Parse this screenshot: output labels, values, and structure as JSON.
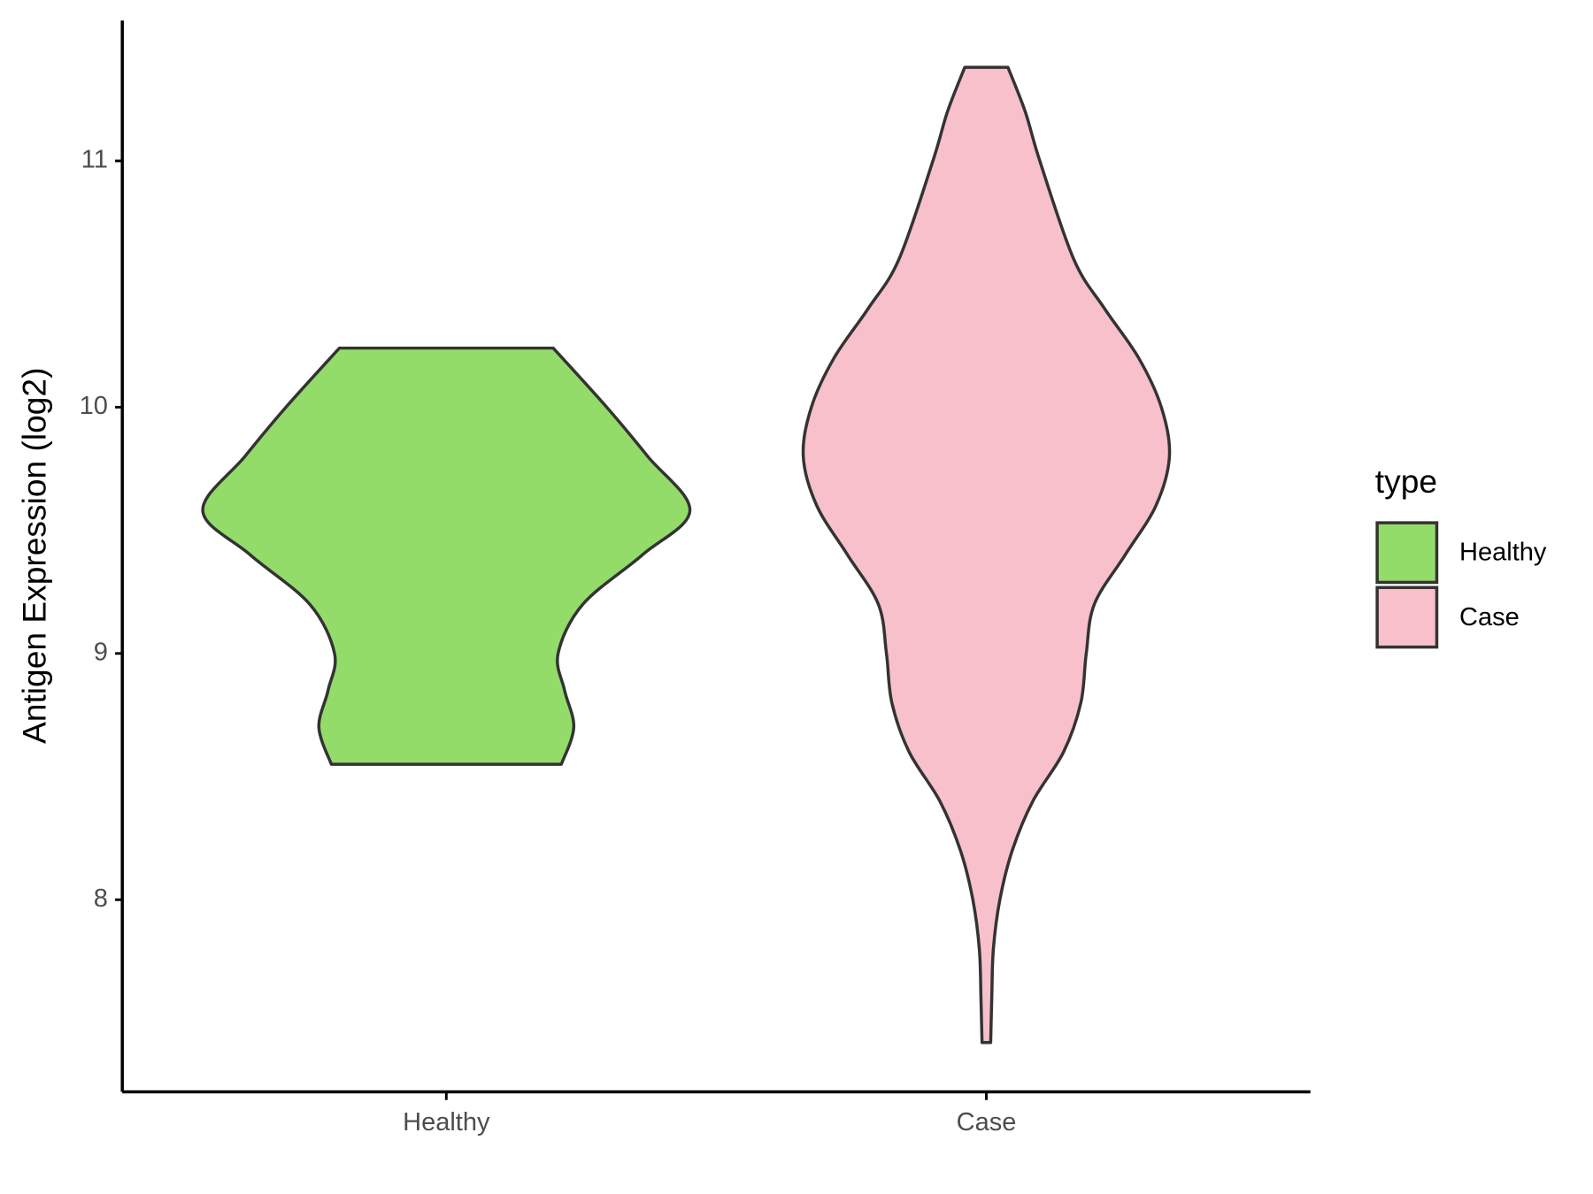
{
  "chart_data": {
    "type": "violin",
    "y_label": "Antigen Expression (log2)",
    "categories": [
      "Healthy",
      "Case"
    ],
    "xlim": [
      0.4,
      2.6
    ],
    "ylim": [
      7.22,
      11.57
    ],
    "yticks": [
      8,
      9,
      10,
      11
    ],
    "legend_title": "type",
    "legend_position": "right",
    "series": [
      {
        "name": "Healthy",
        "color": "#93dc6a",
        "y": [
          10.24,
          10.0,
          9.8,
          9.58,
          9.4,
          9.2,
          9.0,
          8.85,
          8.7,
          8.55
        ],
        "half_width": [
          0.198,
          0.297,
          0.373,
          0.451,
          0.363,
          0.253,
          0.207,
          0.219,
          0.236,
          0.213
        ]
      },
      {
        "name": "Case",
        "color": "#f7c0cb",
        "y": [
          11.38,
          11.2,
          11.0,
          10.6,
          10.4,
          10.2,
          10.0,
          9.8,
          9.6,
          9.4,
          9.2,
          9.0,
          8.8,
          8.6,
          8.4,
          8.2,
          8.0,
          7.8,
          7.6,
          7.42
        ],
        "half_width": [
          0.04,
          0.072,
          0.099,
          0.162,
          0.219,
          0.282,
          0.324,
          0.339,
          0.314,
          0.257,
          0.2,
          0.185,
          0.175,
          0.143,
          0.086,
          0.048,
          0.025,
          0.013,
          0.01,
          0.008
        ]
      }
    ]
  }
}
